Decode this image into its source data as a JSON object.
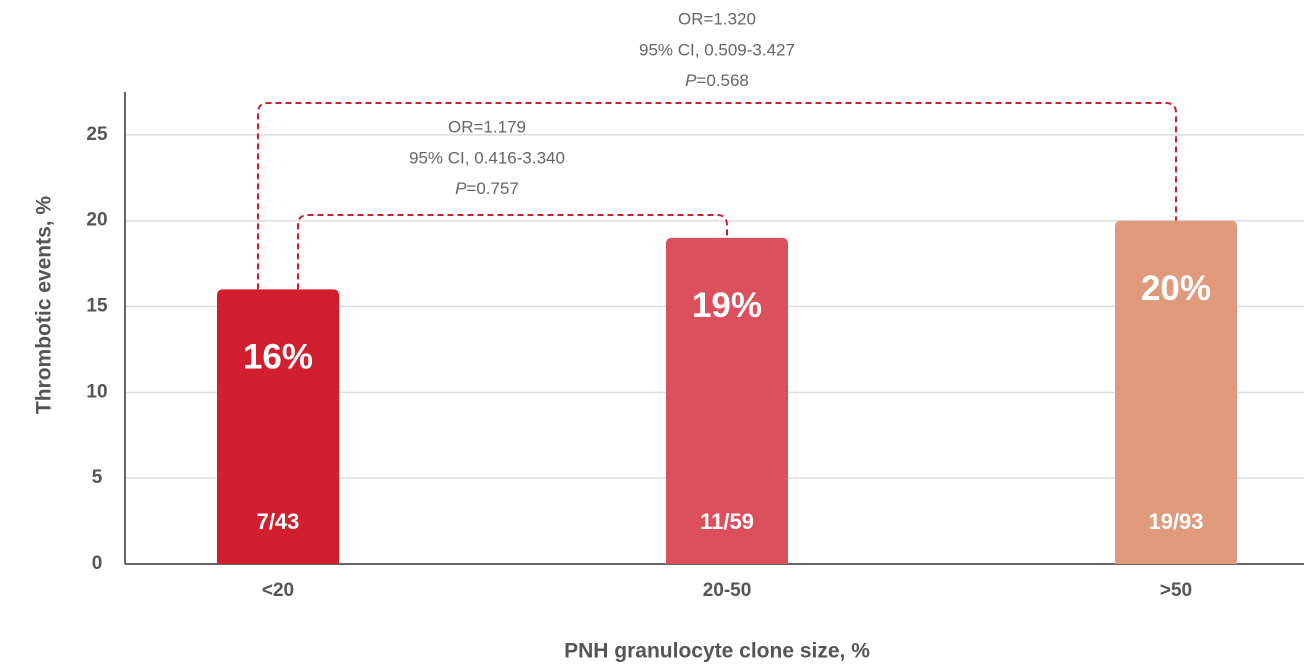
{
  "chart_data": {
    "type": "bar",
    "categories": [
      "<20",
      "20-50",
      ">50"
    ],
    "values": [
      16,
      19,
      20
    ],
    "value_labels": [
      "16%",
      "19%",
      "20%"
    ],
    "counts": [
      "7/43",
      "11/59",
      "19/93"
    ],
    "colors": [
      "#d21f30",
      "#dc4f5c",
      "#e0997a"
    ],
    "xlabel": "PNH granulocyte clone size, %",
    "ylabel": "Thrombotic events, %",
    "ylim": [
      0,
      27.5
    ],
    "yticks": [
      0,
      5,
      10,
      15,
      20,
      25
    ],
    "grid": true,
    "comparisons": [
      {
        "or": "OR=1.320",
        "ci": "95% CI, 0.509-3.427",
        "p_symbol": "P",
        "p_value": "=0.568"
      },
      {
        "or": "OR=1.179",
        "ci": "95% CI, 0.416-3.340",
        "p_symbol": "P",
        "p_value": "=0.757"
      }
    ]
  }
}
